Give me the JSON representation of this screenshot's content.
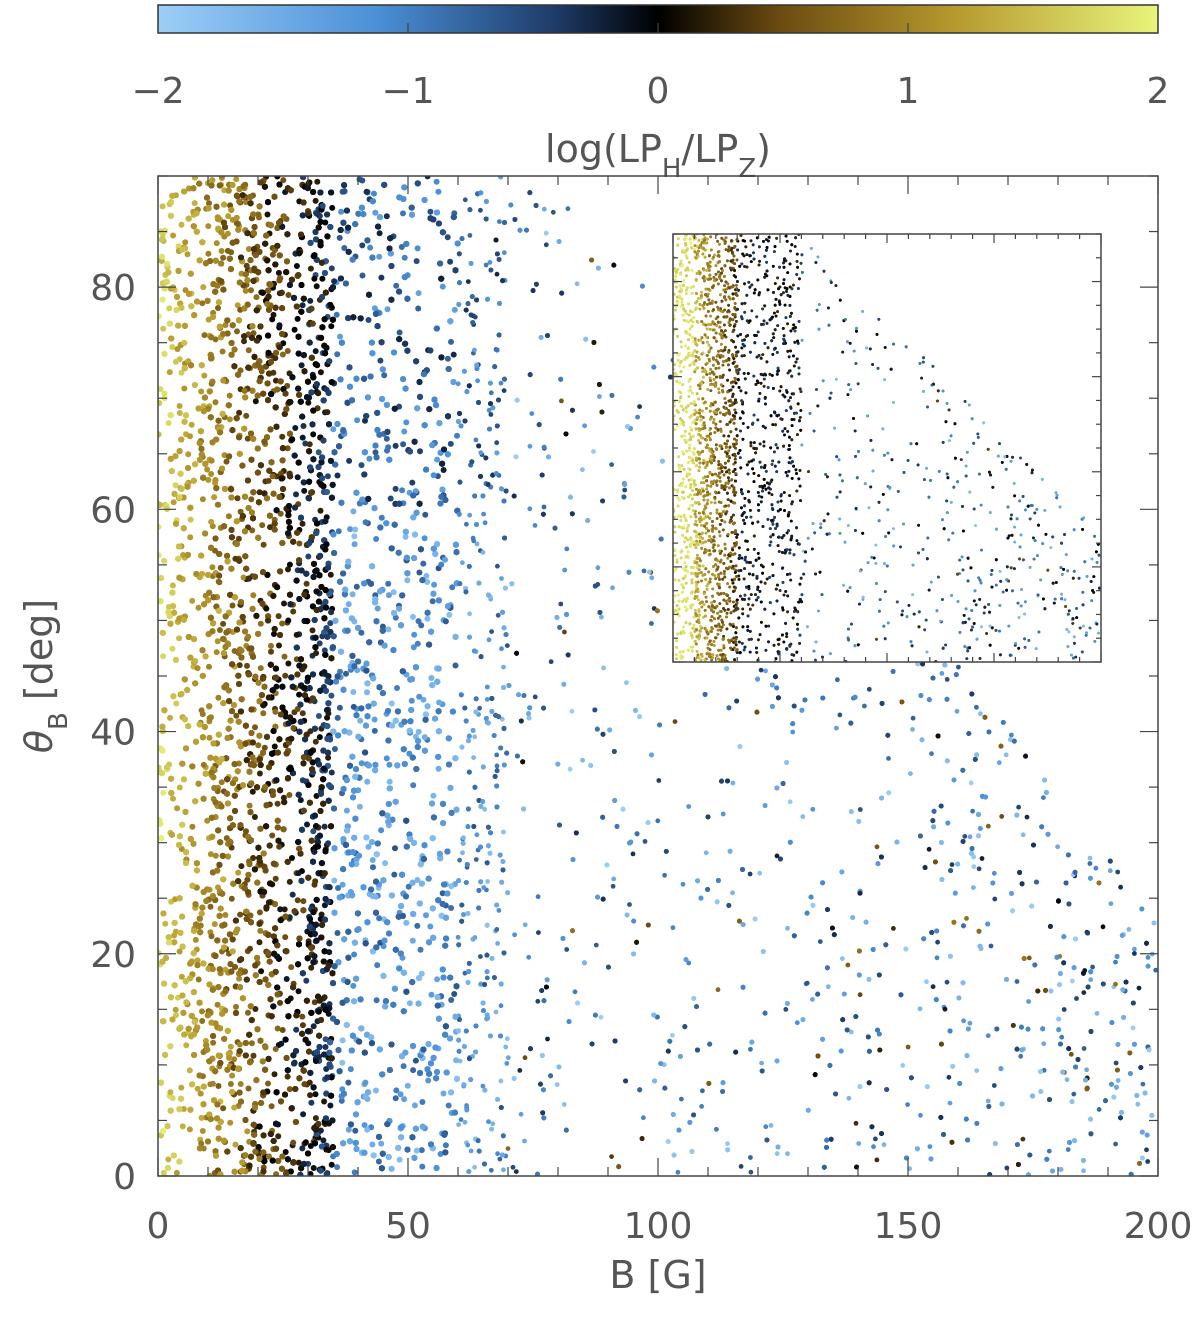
{
  "chart_data": {
    "type": "scatter",
    "title": "",
    "xlabel": "B [G]",
    "ylabel": "θB [deg]",
    "ylabel_main": "θ",
    "ylabel_sub": "B",
    "ylabel_unit": "[deg]",
    "xlim": [
      0,
      200
    ],
    "ylim": [
      0,
      90
    ],
    "x_ticks": [
      0,
      50,
      100,
      150,
      200
    ],
    "y_ticks": [
      0,
      20,
      40,
      60,
      80
    ],
    "grid": false,
    "legend": "none",
    "colorbar": {
      "label": "log(LPH/LPZ)",
      "label_prefix": "log(LP",
      "label_sub1": "H",
      "label_mid": "/LP",
      "label_sub2": "Z",
      "label_suffix": ")",
      "range": [
        -2,
        2
      ],
      "ticks": [
        -2,
        -1,
        0,
        1,
        2
      ],
      "tick_labels": [
        "−2",
        "−1",
        "0",
        "1",
        "2"
      ],
      "colors": [
        "#9ccff7",
        "#4b8fd6",
        "#1d3a66",
        "#000000",
        "#6b4a10",
        "#b79b2f",
        "#e8f57a"
      ],
      "stops": [
        0.0,
        0.22,
        0.4,
        0.5,
        0.62,
        0.8,
        1.0
      ]
    },
    "series": [
      {
        "description_regions": [
          {
            "x": [
              1,
              12
            ],
            "y": [
              0,
              90
            ],
            "c": [
              1.2,
              2.0
            ]
          },
          {
            "x": [
              5,
              35
            ],
            "y": [
              5,
              90
            ],
            "c": [
              0.3,
              1.3
            ]
          },
          {
            "x": [
              10,
              60
            ],
            "y": [
              20,
              90
            ],
            "c": [
              -1.2,
              0.0
            ]
          },
          {
            "x": [
              40,
              100
            ],
            "y": [
              15,
              90
            ],
            "c": [
              -1.5,
              0.5
            ]
          },
          {
            "x": [
              60,
              200
            ],
            "y": [
              0,
              60
            ],
            "c": [
              -2.0,
              0.3
            ]
          }
        ]
      }
    ],
    "inset": {
      "type": "scatter",
      "colorbar_range": [
        -2,
        2
      ],
      "description": "scatter with yellow dominant at low B, dark and blue dots to the right"
    }
  }
}
